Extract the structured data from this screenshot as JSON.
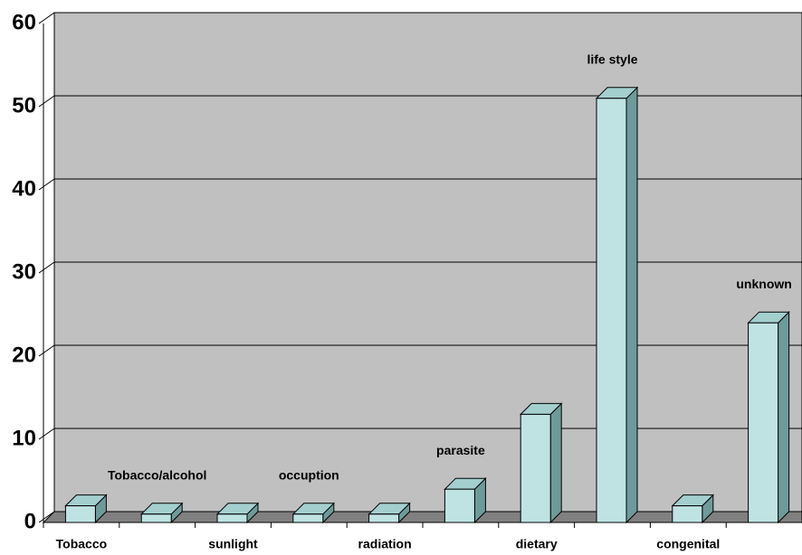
{
  "chart_data": {
    "type": "bar3d",
    "categories": [
      "Tobacco",
      "Tobacco/alcohol",
      "sunlight",
      "occuption",
      "radiation",
      "parasite",
      "dietary",
      "life style",
      "congenital",
      "unknown"
    ],
    "values": [
      2,
      1,
      1,
      1,
      1,
      4,
      13,
      51,
      2,
      24
    ],
    "color": "#bfe3e3",
    "ylim": [
      0,
      60
    ],
    "yticks": [
      0,
      10,
      20,
      30,
      40,
      50,
      60
    ],
    "grid": true
  }
}
